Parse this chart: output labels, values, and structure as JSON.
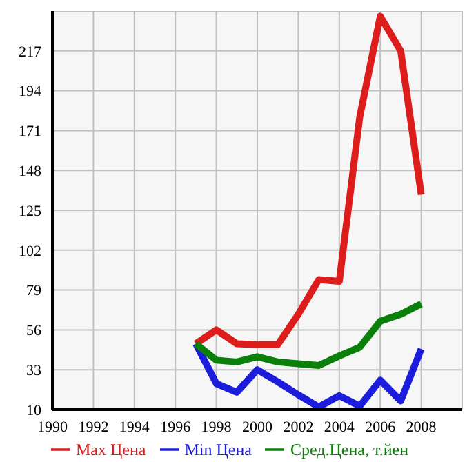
{
  "chart_data": {
    "type": "line",
    "x": [
      1997,
      1998,
      1999,
      2000,
      2001,
      2002,
      2003,
      2004,
      2005,
      2006,
      2007,
      2008
    ],
    "series": [
      {
        "name": "Max Цена",
        "color": "#dd1c1c",
        "values": [
          48,
          56,
          48,
          47.5,
          47.5,
          65,
          85,
          84,
          179,
          237,
          217,
          134
        ]
      },
      {
        "name": "Min Цена",
        "color": "#1c1cdd",
        "values": [
          48,
          25,
          20,
          33,
          26,
          18.5,
          11.5,
          18,
          12,
          27,
          15,
          45
        ]
      },
      {
        "name": "Сред.Цена, т.йен",
        "color": "#0a800a",
        "values": [
          48,
          38.5,
          37.5,
          40.5,
          37.5,
          36.5,
          35.5,
          41,
          46,
          61,
          65,
          71
        ]
      }
    ],
    "xlim": [
      1990,
      2010
    ],
    "xticks": [
      1990,
      1992,
      1994,
      1996,
      1998,
      2000,
      2002,
      2004,
      2006,
      2008
    ],
    "ylim": [
      10,
      240
    ],
    "yticks": [
      10,
      33,
      56,
      79,
      102,
      125,
      148,
      171,
      194,
      217
    ],
    "grid": true,
    "legend": "bottom",
    "marker": "none",
    "line_style": "solid"
  }
}
